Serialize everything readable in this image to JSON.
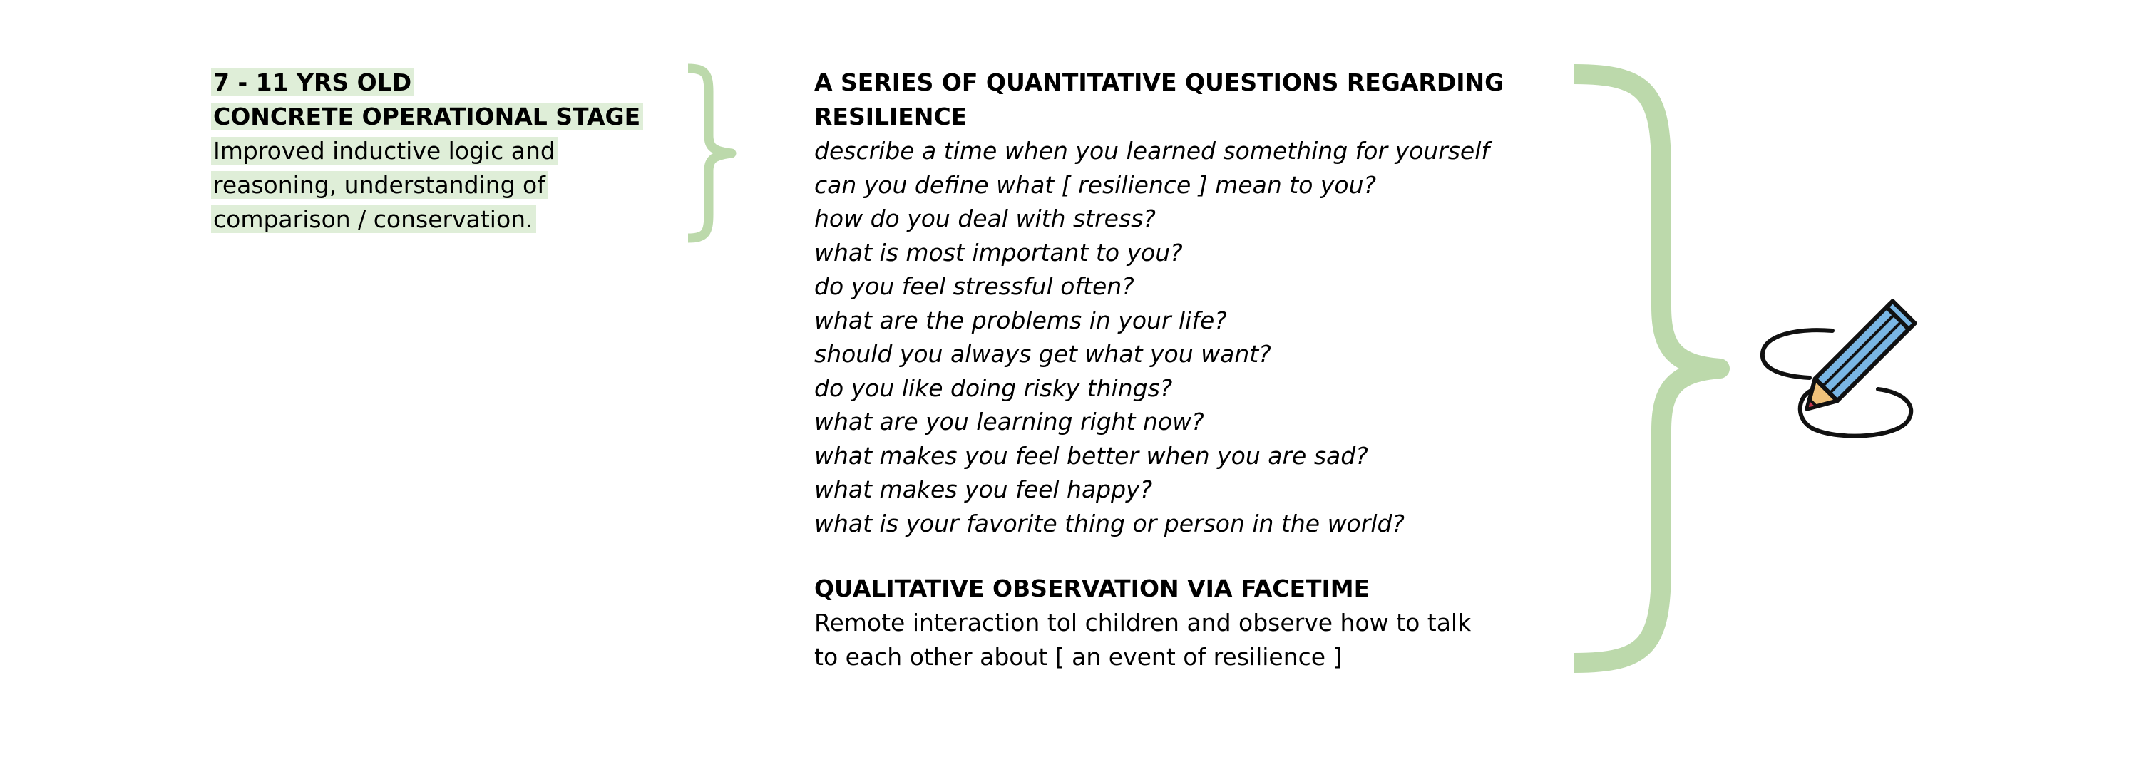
{
  "stage": {
    "age_label": "7 - 11 YRS OLD",
    "stage_label": "CONCRETE OPERATIONAL STAGE",
    "description_lines": [
      "Improved inductive logic and",
      "reasoning, understanding of",
      "comparison / conservation."
    ],
    "highlight_color": "#dfeed8"
  },
  "quantitative": {
    "heading_lines": [
      "A SERIES OF QUANTITATIVE QUESTIONS REGARDING",
      "RESILIENCE"
    ],
    "questions": [
      "describe a time when you learned something for yourself",
      "can you define what [ resilience ] mean to you?",
      "how do you deal with stress?",
      "what is most important to you?",
      "do you feel stressful often?",
      "what are the problems in your life?",
      "should you always get what you want?",
      "do you like doing risky things?",
      "what are you learning right now?",
      "what makes you feel better when you are sad?",
      "what makes you feel happy?",
      "what is your favorite thing or person in the world?"
    ]
  },
  "qualitative": {
    "heading": "QUALITATIVE OBSERVATION VIA FACETIME",
    "description_lines": [
      "Remote interaction tol children and observe how to talk",
      "to each other about [ an event of resilience ]"
    ]
  },
  "colors": {
    "brace": "#bcd9ab",
    "pencil_body": "#79b6e4",
    "pencil_wood": "#f0c27a",
    "pencil_tip": "#c7354a",
    "ink": "#111111"
  },
  "icons": {
    "pencil": "pencil-drawing-icon"
  }
}
